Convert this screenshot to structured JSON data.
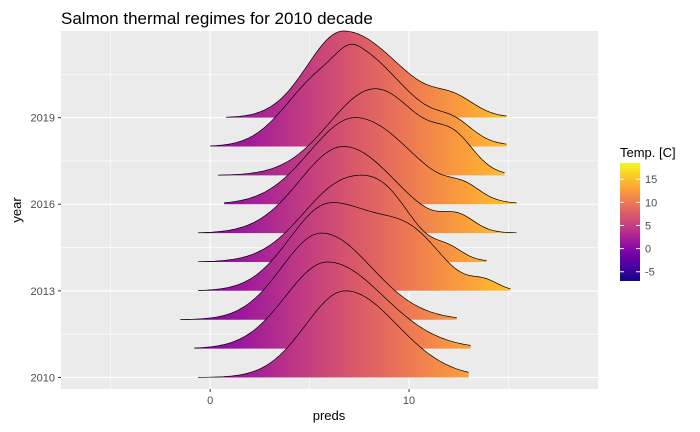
{
  "chart_data": {
    "type": "ridgeline",
    "title": "Salmon thermal regimes for 2010 decade",
    "xlabel": "preds",
    "ylabel": "year",
    "xlim": [
      -7.5,
      19.5
    ],
    "x_ticks": [
      0,
      10
    ],
    "y_ticks": [
      2010,
      2013,
      2016,
      2019
    ],
    "ylim": [
      2009.6,
      2022.0
    ],
    "scale": 3,
    "grid": true,
    "legend": {
      "title": "Temp. [C]",
      "position": "right",
      "range": [
        -7,
        18.5
      ],
      "ticks": [
        -5,
        0,
        5,
        10,
        15
      ],
      "colors": [
        "#0d0887",
        "#46039f",
        "#7201a8",
        "#9c179e",
        "#bd3786",
        "#d8576b",
        "#ed7953",
        "#fb9f3a",
        "#fdca26",
        "#f0f921"
      ]
    },
    "background_color": "#ebebeb",
    "grid_color": "#ffffff",
    "series": [
      {
        "name": "2010",
        "range": [
          -0.6,
          13.0
        ],
        "peaks": [
          [
            6.8,
            2.0,
            2.6,
            1.0
          ]
        ]
      },
      {
        "name": "2011",
        "range": [
          -0.8,
          13.1
        ],
        "peaks": [
          [
            5.9,
            2.1,
            2.8,
            1.0
          ]
        ]
      },
      {
        "name": "2012",
        "range": [
          -1.5,
          12.4
        ],
        "peaks": [
          [
            5.6,
            2.0,
            2.5,
            1.0
          ]
        ]
      },
      {
        "name": "2013",
        "range": [
          -0.6,
          15.1
        ],
        "peaks": [
          [
            6.0,
            2.0,
            2.5,
            1.0
          ],
          [
            10.2,
            1.6,
            1.6,
            0.5
          ],
          [
            13.8,
            0.7,
            0.7,
            0.1
          ]
        ]
      },
      {
        "name": "2014",
        "range": [
          -0.6,
          13.9
        ],
        "peaks": [
          [
            6.9,
            2.2,
            2.4,
            0.93
          ],
          [
            9.0,
            1.2,
            1.2,
            0.22
          ],
          [
            12.0,
            0.7,
            0.7,
            0.1
          ]
        ]
      },
      {
        "name": "2015",
        "range": [
          -0.6,
          15.4
        ],
        "peaks": [
          [
            6.7,
            2.2,
            2.6,
            1.0
          ],
          [
            12.5,
            0.8,
            0.8,
            0.15
          ]
        ]
      },
      {
        "name": "2016",
        "range": [
          0.7,
          15.4
        ],
        "peaks": [
          [
            7.3,
            2.3,
            2.8,
            1.0
          ],
          [
            12.8,
            0.8,
            0.8,
            0.12
          ]
        ]
      },
      {
        "name": "2017",
        "range": [
          0.4,
          14.8
        ],
        "peaks": [
          [
            8.3,
            2.3,
            2.3,
            1.0
          ],
          [
            12.3,
            1.0,
            1.0,
            0.3
          ]
        ]
      },
      {
        "name": "2018",
        "range": [
          0.0,
          14.9
        ],
        "peaks": [
          [
            5.6,
            1.8,
            3.2,
            0.78
          ],
          [
            7.4,
            1.1,
            2.8,
            0.5
          ],
          [
            12.3,
            0.9,
            0.9,
            0.15
          ]
        ]
      },
      {
        "name": "2019",
        "range": [
          0.8,
          14.9
        ],
        "peaks": [
          [
            6.7,
            1.8,
            2.8,
            1.0
          ],
          [
            12.3,
            1.0,
            1.0,
            0.15
          ]
        ]
      }
    ]
  }
}
